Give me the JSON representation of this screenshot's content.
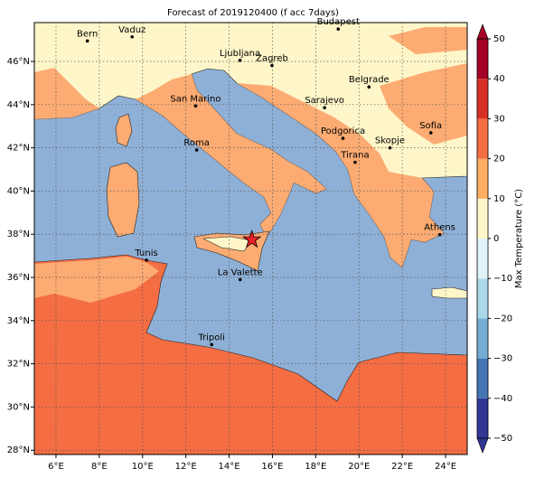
{
  "title": "Forecast of 2019120400 (f acc 7days)",
  "map": {
    "lonlim": [
      5,
      25
    ],
    "latlim": [
      27.8,
      47.8
    ],
    "grid": true,
    "lonticks": [
      {
        "value": 6,
        "label": "6°E"
      },
      {
        "value": 8,
        "label": "8°E"
      },
      {
        "value": 10,
        "label": "10°E"
      },
      {
        "value": 12,
        "label": "12°E"
      },
      {
        "value": 14,
        "label": "14°E"
      },
      {
        "value": 16,
        "label": "16°E"
      },
      {
        "value": 18,
        "label": "18°E"
      },
      {
        "value": 20,
        "label": "20°E"
      },
      {
        "value": 22,
        "label": "22°E"
      },
      {
        "value": 24,
        "label": "24°E"
      }
    ],
    "latticks": [
      {
        "value": 28,
        "label": "28°N"
      },
      {
        "value": 30,
        "label": "30°N"
      },
      {
        "value": 32,
        "label": "32°N"
      },
      {
        "value": 34,
        "label": "34°N"
      },
      {
        "value": 36,
        "label": "36°N"
      },
      {
        "value": 38,
        "label": "38°N"
      },
      {
        "value": 40,
        "label": "40°N"
      },
      {
        "value": 42,
        "label": "42°N"
      },
      {
        "value": 44,
        "label": "44°N"
      },
      {
        "value": 46,
        "label": "46°N"
      }
    ]
  },
  "cities": [
    {
      "name": "Bern",
      "lon": 7.45,
      "lat": 46.95
    },
    {
      "name": "Vaduz",
      "lon": 9.52,
      "lat": 47.14
    },
    {
      "name": "Budapest",
      "lon": 19.04,
      "lat": 47.5
    },
    {
      "name": "Ljubljana",
      "lon": 14.5,
      "lat": 46.05
    },
    {
      "name": "Zagreb",
      "lon": 15.98,
      "lat": 45.81
    },
    {
      "name": "Belgrade",
      "lon": 20.46,
      "lat": 44.82
    },
    {
      "name": "San Marino",
      "lon": 12.45,
      "lat": 43.94
    },
    {
      "name": "Sarajevo",
      "lon": 18.41,
      "lat": 43.86
    },
    {
      "name": "Sofia",
      "lon": 23.32,
      "lat": 42.7
    },
    {
      "name": "Podgorica",
      "lon": 19.26,
      "lat": 42.44
    },
    {
      "name": "Skopje",
      "lon": 21.43,
      "lat": 42.0
    },
    {
      "name": "Roma",
      "lon": 12.5,
      "lat": 41.9
    },
    {
      "name": "Tirana",
      "lon": 19.82,
      "lat": 41.33
    },
    {
      "name": "Athens",
      "lon": 23.73,
      "lat": 37.98
    },
    {
      "name": "Tunis",
      "lon": 10.18,
      "lat": 36.8
    },
    {
      "name": "La Valette",
      "lon": 14.51,
      "lat": 35.9
    },
    {
      "name": "Tripoli",
      "lon": 13.19,
      "lat": 32.89
    }
  ],
  "marker": {
    "lon": 15.05,
    "lat": 37.75,
    "color": "#e8202a"
  },
  "colorbar": {
    "label": "Max Temperature (°C)",
    "lim": [
      -50,
      50
    ],
    "ticks": [
      {
        "value": -50,
        "label": "−50"
      },
      {
        "value": -40,
        "label": "−40"
      },
      {
        "value": -30,
        "label": "−30"
      },
      {
        "value": -20,
        "label": "−20"
      },
      {
        "value": -10,
        "label": "−10"
      },
      0,
      10,
      20,
      30,
      40,
      50
    ],
    "colors": [
      "#313695",
      "#4575b4",
      "#74add1",
      "#abd9e9",
      "#e0f3f8",
      "#fef6c8",
      "#fdae61",
      "#f46d43",
      "#d73027",
      "#a50026"
    ]
  }
}
